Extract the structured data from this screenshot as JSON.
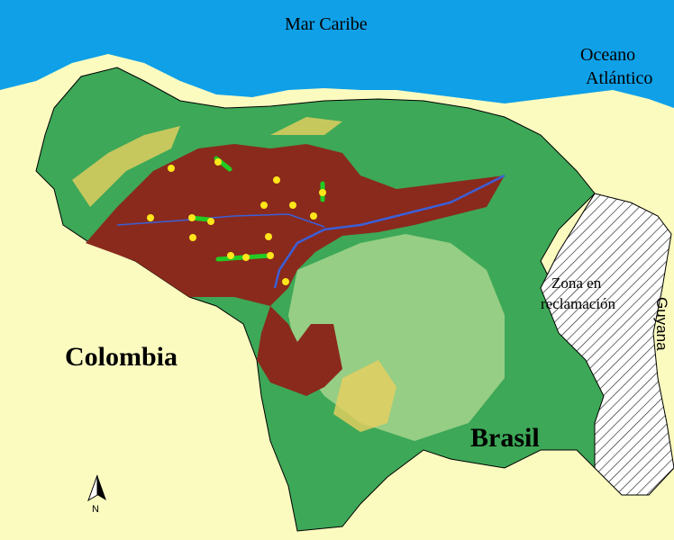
{
  "labels": {
    "caribbean": "Mar Caribe",
    "atlantic_line1": "Oceano",
    "atlantic_line2": "Atlántico",
    "colombia": "Colombia",
    "brazil": "Brasil",
    "claim_line1": "Zona en",
    "claim_line2": "reclamación",
    "guyana": "Guyana",
    "north": "N"
  },
  "colors": {
    "ocean": "#0fa0e8",
    "land_outside": "#fbfbc0",
    "lowland_green": "#2e9c45",
    "llanos_region": "#8a2a1c",
    "highlands": "#e8d060",
    "rivers": "#3b5fd8",
    "sample_points": "#ffe61a",
    "sample_tracks": "#22cc22"
  },
  "icons": [
    "north-arrow-icon"
  ]
}
